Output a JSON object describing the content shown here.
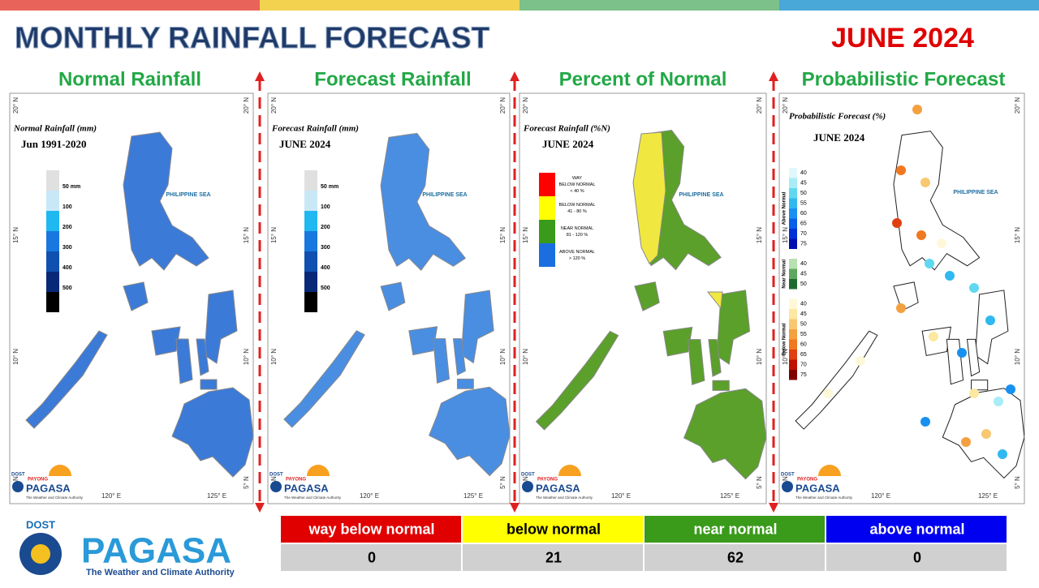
{
  "header": {
    "title": "MONTHLY RAINFALL FORECAST",
    "period": "JUNE 2024"
  },
  "map_labels": {
    "lat": [
      "20° N",
      "15° N",
      "10° N",
      "5° N"
    ],
    "lon": [
      "120° E",
      "125° E"
    ],
    "sea": "PHILIPPINE SEA",
    "logo": {
      "dost": "DOST",
      "payong": "PAYONG",
      "pagasa": "PAGASA",
      "tagline": "The Weather and Climate Authority"
    }
  },
  "panels": [
    {
      "title": "Normal Rainfall",
      "map_title": "Normal Rainfall (mm)",
      "map_subtitle": "Jun 1991-2020",
      "map_fill": "#3c7ad8",
      "legend": [
        "50 mm",
        "100",
        "200",
        "300",
        "400",
        "500"
      ],
      "legend_colors": [
        "#e0e0e0",
        "#c8e8f8",
        "#20b8f0",
        "#1878e0",
        "#1050b0",
        "#082878",
        "#000000"
      ]
    },
    {
      "title": "Forecast Rainfall",
      "map_title": "Forecast Rainfall (mm)",
      "map_subtitle": "JUNE 2024",
      "map_fill": "#4a8ee2",
      "legend": [
        "50 mm",
        "100",
        "200",
        "300",
        "400",
        "500"
      ],
      "legend_colors": [
        "#e0e0e0",
        "#c8e8f8",
        "#20b8f0",
        "#1878e0",
        "#1050b0",
        "#082878",
        "#000000"
      ]
    },
    {
      "title": "Percent of Normal",
      "map_title": "Forecast Rainfall (%N)",
      "map_subtitle": "JUNE 2024",
      "map_fill": "#5aa02a",
      "categories": [
        {
          "lines": [
            "WAY",
            "BELOW NORMAL",
            "< 40 %"
          ],
          "color": "#ff0000"
        },
        {
          "lines": [
            "BELOW NORMAL",
            "41 - 80 %"
          ],
          "color": "#ffff00"
        },
        {
          "lines": [
            "NEAR NORMAL",
            "81 - 120 %"
          ],
          "color": "#3a9a1a"
        },
        {
          "lines": [
            "ABOVE NORMAL",
            "> 120 %"
          ],
          "color": "#1a6ee0"
        }
      ]
    },
    {
      "title": "Probabilistic Forecast",
      "map_title": "Probabilistic Forecast (%)",
      "map_subtitle": "JUNE 2024",
      "map_fill": "#ffffff",
      "groups": [
        {
          "name": "Above Normal",
          "ticks": [
            40,
            45,
            50,
            55,
            60,
            65,
            70,
            75
          ],
          "colors": [
            "#e0f8fc",
            "#a8ecf8",
            "#60d8f0",
            "#30b8f0",
            "#1890f0",
            "#0860e8",
            "#0030d8",
            "#0010b0"
          ]
        },
        {
          "name": "Near Normal",
          "ticks": [
            40,
            45,
            50
          ],
          "colors": [
            "#b8e0b0",
            "#60a860",
            "#206a30"
          ]
        },
        {
          "name": "Below Normal",
          "ticks": [
            40,
            45,
            50,
            55,
            60,
            65,
            70,
            75
          ],
          "colors": [
            "#fff8d8",
            "#fce8a0",
            "#f8c870",
            "#f4a040",
            "#f07820",
            "#e04010",
            "#c01000",
            "#800000"
          ]
        }
      ]
    }
  ],
  "table": {
    "header": [
      "way below normal",
      "below normal",
      "near normal",
      "above normal"
    ],
    "header_colors": [
      "#e00000",
      "#ffff00",
      "#3a9a1a",
      "#0000f0"
    ],
    "rows": [
      [
        0,
        21,
        62,
        0
      ]
    ]
  },
  "footer_logo": {
    "dost": "DOST",
    "pagasa": "PAGASA",
    "tagline": "The Weather and Climate Authority"
  }
}
